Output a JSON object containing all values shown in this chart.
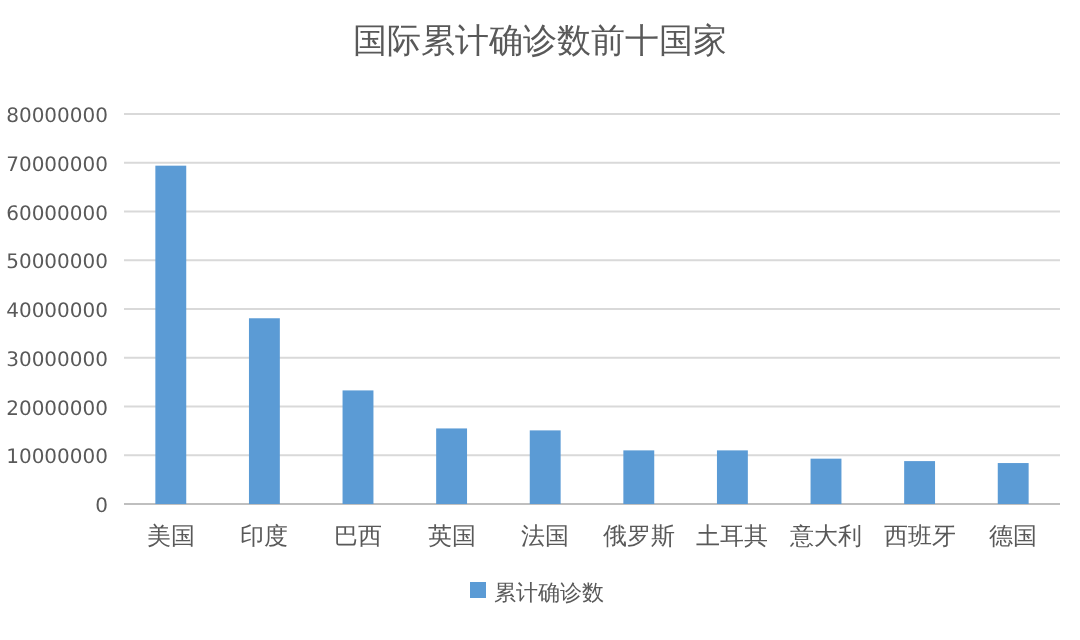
{
  "chart_data": {
    "type": "bar",
    "title": "国际累计确诊数前十国家",
    "categories": [
      "美国",
      "印度",
      "巴西",
      "英国",
      "法国",
      "俄罗斯",
      "土耳其",
      "意大利",
      "西班牙",
      "德国"
    ],
    "series": [
      {
        "name": "累计确诊数",
        "color": "#5b9bd5",
        "values": [
          69400000,
          38100000,
          23300000,
          15500000,
          15100000,
          11000000,
          11000000,
          9300000,
          8800000,
          8400000
        ]
      }
    ],
    "ylim": [
      0,
      80000000
    ],
    "yticks": [
      0,
      10000000,
      20000000,
      30000000,
      40000000,
      50000000,
      60000000,
      70000000,
      80000000
    ],
    "grid": "y",
    "legend": "bottom"
  }
}
